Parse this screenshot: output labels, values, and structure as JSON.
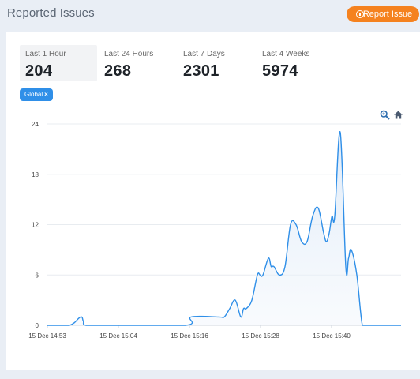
{
  "header": {
    "title": "Reported Issues",
    "report_button_label": "Report Issue"
  },
  "stats": [
    {
      "label": "Last 1 Hour",
      "value": "204"
    },
    {
      "label": "Last 24 Hours",
      "value": "268"
    },
    {
      "label": "Last 7 Days",
      "value": "2301"
    },
    {
      "label": "Last 4 Weeks",
      "value": "5974"
    }
  ],
  "filter": {
    "label": "Global",
    "remove": "×"
  },
  "colors": {
    "accent": "#2f8fe8",
    "report_button": "#f5821f",
    "line": "#2f8fe8"
  },
  "chart_data": {
    "type": "area",
    "y_ticks": [
      0,
      6,
      12,
      18,
      24
    ],
    "ylim": [
      0,
      24
    ],
    "x_tick_labels": [
      "15 Dec 14:53",
      "15 Dec 15:04",
      "15 Dec 15:16",
      "15 Dec 15:28",
      "15 Dec 15:40"
    ],
    "grid": true,
    "x": [
      0,
      4,
      6,
      6.5,
      7,
      11,
      25,
      26,
      31,
      32,
      33,
      34,
      35,
      35.5,
      36,
      37,
      38,
      38.5,
      39,
      40,
      40.5,
      41,
      42,
      43,
      44,
      45,
      46,
      47,
      48,
      49,
      50,
      50.5,
      51,
      51.5,
      52,
      53,
      54,
      54.5,
      55,
      56,
      57,
      58,
      59,
      60,
      61,
      61.5,
      62,
      63,
      64
    ],
    "values": [
      0,
      0,
      1,
      0.5,
      0,
      0,
      0,
      1,
      1,
      1,
      2,
      3,
      1,
      2,
      2,
      3,
      6,
      6,
      6,
      8,
      7,
      7,
      6,
      7,
      12,
      12,
      10,
      10,
      13,
      14,
      11,
      10,
      11,
      13,
      13,
      23,
      7,
      8,
      9,
      6,
      0,
      0,
      0,
      0,
      0,
      0,
      0,
      0,
      0
    ]
  }
}
